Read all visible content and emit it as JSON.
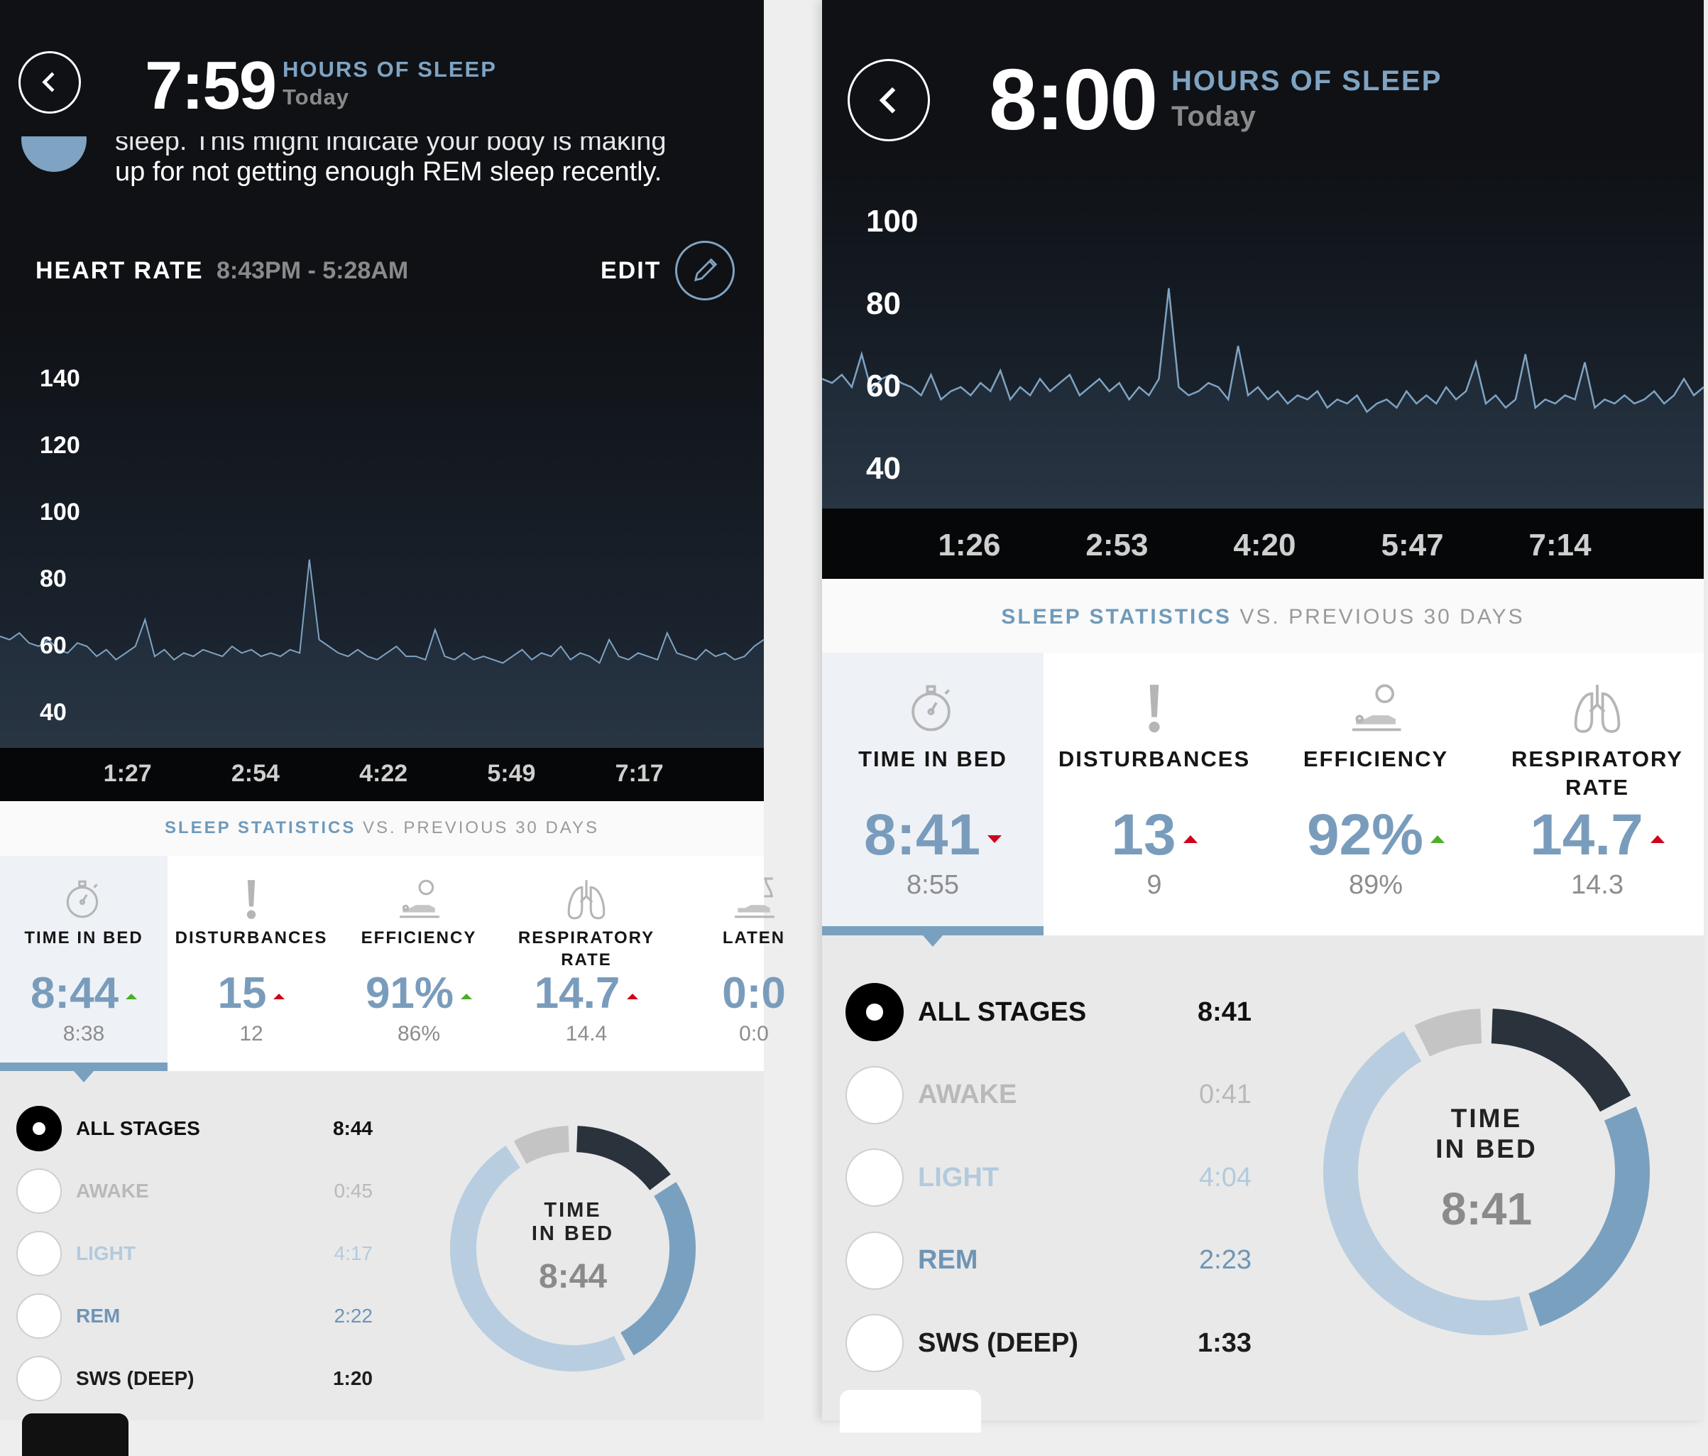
{
  "left": {
    "header": {
      "hours": "7:59",
      "title": "HOURS OF SLEEP",
      "subtitle": "Today"
    },
    "message": {
      "line1": "sleep. This might indicate your body is making",
      "line2": "up for not getting enough REM sleep recently."
    },
    "heart_rate": {
      "label": "HEART RATE",
      "range": "8:43PM - 5:28AM",
      "edit": "EDIT"
    },
    "stats_heading": {
      "highlight": "SLEEP STATISTICS",
      "rest": " VS. PREVIOUS 30 DAYS"
    },
    "stats": [
      {
        "icon": "stopwatch-icon",
        "label": "TIME IN BED",
        "value": "8:44",
        "trend": "up",
        "trend_color": "#4cb026",
        "previous": "8:38"
      },
      {
        "icon": "exclamation-icon",
        "label": "DISTURBANCES",
        "value": "15",
        "trend": "up",
        "trend_color": "#d0021b",
        "previous": "12"
      },
      {
        "icon": "efficiency-bed-icon",
        "label": "EFFICIENCY",
        "value": "91%",
        "trend": "up",
        "trend_color": "#4cb026",
        "previous": "86%"
      },
      {
        "icon": "lungs-icon",
        "label": "RESPIRATORY\nRATE",
        "value": "14.7",
        "trend": "up",
        "trend_color": "#d0021b",
        "previous": "14.4"
      },
      {
        "icon": "latency-icon",
        "label": "LATEN",
        "value": "0:0",
        "trend": "",
        "trend_color": "",
        "previous": "0:0"
      }
    ],
    "stages": [
      {
        "label": "ALL STAGES",
        "value": "8:44",
        "selected": true,
        "color": "#111111"
      },
      {
        "label": "AWAKE",
        "value": "0:45",
        "selected": false,
        "color": "#b9b9b9"
      },
      {
        "label": "LIGHT",
        "value": "4:17",
        "selected": false,
        "color": "#b3cadd"
      },
      {
        "label": "REM",
        "value": "2:22",
        "selected": false,
        "color": "#6f95b5"
      },
      {
        "label": "SWS (DEEP)",
        "value": "1:20",
        "selected": false,
        "color": "#1c1c1c"
      }
    ],
    "donut": {
      "line1": "TIME",
      "line2": "IN BED",
      "value": "8:44"
    }
  },
  "right": {
    "header": {
      "hours": "8:00",
      "title": "HOURS OF SLEEP",
      "subtitle": "Today"
    },
    "stats_heading": {
      "highlight": "SLEEP STATISTICS",
      "rest": " VS. PREVIOUS 30 DAYS"
    },
    "stats": [
      {
        "icon": "stopwatch-icon",
        "label": "TIME IN BED",
        "value": "8:41",
        "trend": "down",
        "trend_color": "#d0021b",
        "previous": "8:55"
      },
      {
        "icon": "exclamation-icon",
        "label": "DISTURBANCES",
        "value": "13",
        "trend": "up",
        "trend_color": "#d0021b",
        "previous": "9"
      },
      {
        "icon": "efficiency-bed-icon",
        "label": "EFFICIENCY",
        "value": "92%",
        "trend": "up",
        "trend_color": "#4cb026",
        "previous": "89%"
      },
      {
        "icon": "lungs-icon",
        "label": "RESPIRATORY\nRATE",
        "value": "14.7",
        "trend": "up",
        "trend_color": "#d0021b",
        "previous": "14.3"
      }
    ],
    "stages": [
      {
        "label": "ALL STAGES",
        "value": "8:41",
        "selected": true,
        "color": "#111111"
      },
      {
        "label": "AWAKE",
        "value": "0:41",
        "selected": false,
        "color": "#b9b9b9"
      },
      {
        "label": "LIGHT",
        "value": "4:04",
        "selected": false,
        "color": "#b3cadd"
      },
      {
        "label": "REM",
        "value": "2:23",
        "selected": false,
        "color": "#6f95b5"
      },
      {
        "label": "SWS (DEEP)",
        "value": "1:33",
        "selected": false,
        "color": "#1c1c1c"
      }
    ],
    "donut": {
      "line1": "TIME",
      "line2": "IN BED",
      "value": "8:41"
    }
  },
  "donut_colors": {
    "AWAKE": "#c4c4c4",
    "LIGHT": "#b8cde0",
    "REM": "#7aa0bf",
    "SWS (DEEP)": "#2a323c"
  },
  "chart_data": [
    {
      "type": "line",
      "panel": "left",
      "ylabel": "",
      "xlabel": "",
      "yticks": [
        40,
        60,
        80,
        100,
        120,
        140
      ],
      "xticks": [
        "1:27",
        "2:54",
        "4:22",
        "5:49",
        "7:17"
      ],
      "line_color": "#7fa3c2",
      "grid": false,
      "values": [
        63,
        62,
        64,
        61,
        60,
        62,
        59,
        58,
        61,
        60,
        57,
        59,
        56,
        58,
        60,
        68,
        57,
        59,
        56,
        58,
        57,
        59,
        58,
        57,
        60,
        58,
        59,
        57,
        58,
        57,
        59,
        58,
        86,
        62,
        60,
        58,
        57,
        59,
        57,
        56,
        58,
        60,
        57,
        57,
        56,
        65,
        57,
        56,
        58,
        56,
        57,
        56,
        55,
        57,
        59,
        56,
        58,
        57,
        60,
        56,
        58,
        57,
        55,
        62,
        57,
        56,
        58,
        57,
        56,
        64,
        58,
        57,
        56,
        59,
        57,
        58,
        56,
        57,
        60,
        62
      ]
    },
    {
      "type": "line",
      "panel": "right",
      "ylabel": "",
      "xlabel": "",
      "yticks": [
        40,
        60,
        80,
        100
      ],
      "xticks": [
        "1:26",
        "2:53",
        "4:20",
        "5:47",
        "7:14"
      ],
      "line_color": "#7fa3c2",
      "grid": false,
      "values": [
        62,
        61,
        63,
        60,
        68,
        59,
        62,
        63,
        61,
        60,
        58,
        63,
        57,
        59,
        60,
        58,
        61,
        59,
        64,
        57,
        60,
        58,
        62,
        59,
        61,
        63,
        58,
        60,
        62,
        59,
        61,
        57,
        60,
        58,
        62,
        84,
        60,
        58,
        59,
        61,
        60,
        57,
        70,
        58,
        60,
        57,
        59,
        56,
        58,
        57,
        59,
        55,
        57,
        56,
        58,
        54,
        56,
        57,
        55,
        59,
        56,
        58,
        56,
        60,
        57,
        59,
        66,
        56,
        58,
        55,
        57,
        68,
        55,
        57,
        56,
        58,
        57,
        66,
        55,
        57,
        56,
        58,
        56,
        57,
        59,
        56,
        58,
        62,
        58,
        60
      ]
    }
  ]
}
